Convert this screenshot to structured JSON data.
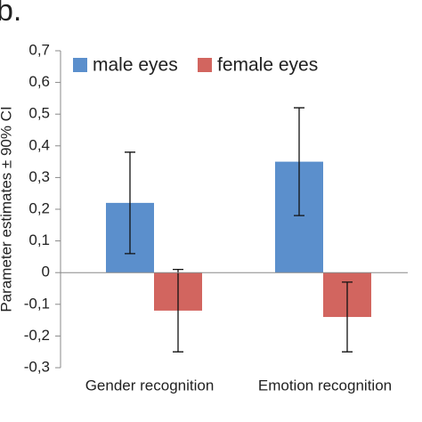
{
  "chart_data": {
    "type": "bar",
    "title": "b.",
    "y_label": "Parameter estimates ± 90% CI",
    "categories": [
      "Gender recognition",
      "Emotion recognition"
    ],
    "series": [
      {
        "name": "male eyes",
        "color": "#5b8fcc",
        "values": [
          0.22,
          0.35
        ],
        "errors": [
          0.16,
          0.17
        ]
      },
      {
        "name": "female eyes",
        "color": "#d2655f",
        "values": [
          -0.12,
          -0.14
        ],
        "errors": [
          0.13,
          0.11
        ]
      }
    ],
    "ylim": [
      -0.3,
      0.7
    ],
    "yticks": [
      {
        "value": 0.7,
        "label": "0,7"
      },
      {
        "value": 0.6,
        "label": "0,6"
      },
      {
        "value": 0.5,
        "label": "0,5"
      },
      {
        "value": 0.4,
        "label": "0,4"
      },
      {
        "value": 0.3,
        "label": "0,3"
      },
      {
        "value": 0.2,
        "label": "0,2"
      },
      {
        "value": 0.1,
        "label": "0,1"
      },
      0,
      {
        "value": -0.1,
        "label": "-0,1"
      },
      {
        "value": -0.2,
        "label": "-0,2"
      },
      {
        "value": -0.3,
        "label": "-0,3"
      }
    ],
    "legend": "top"
  }
}
